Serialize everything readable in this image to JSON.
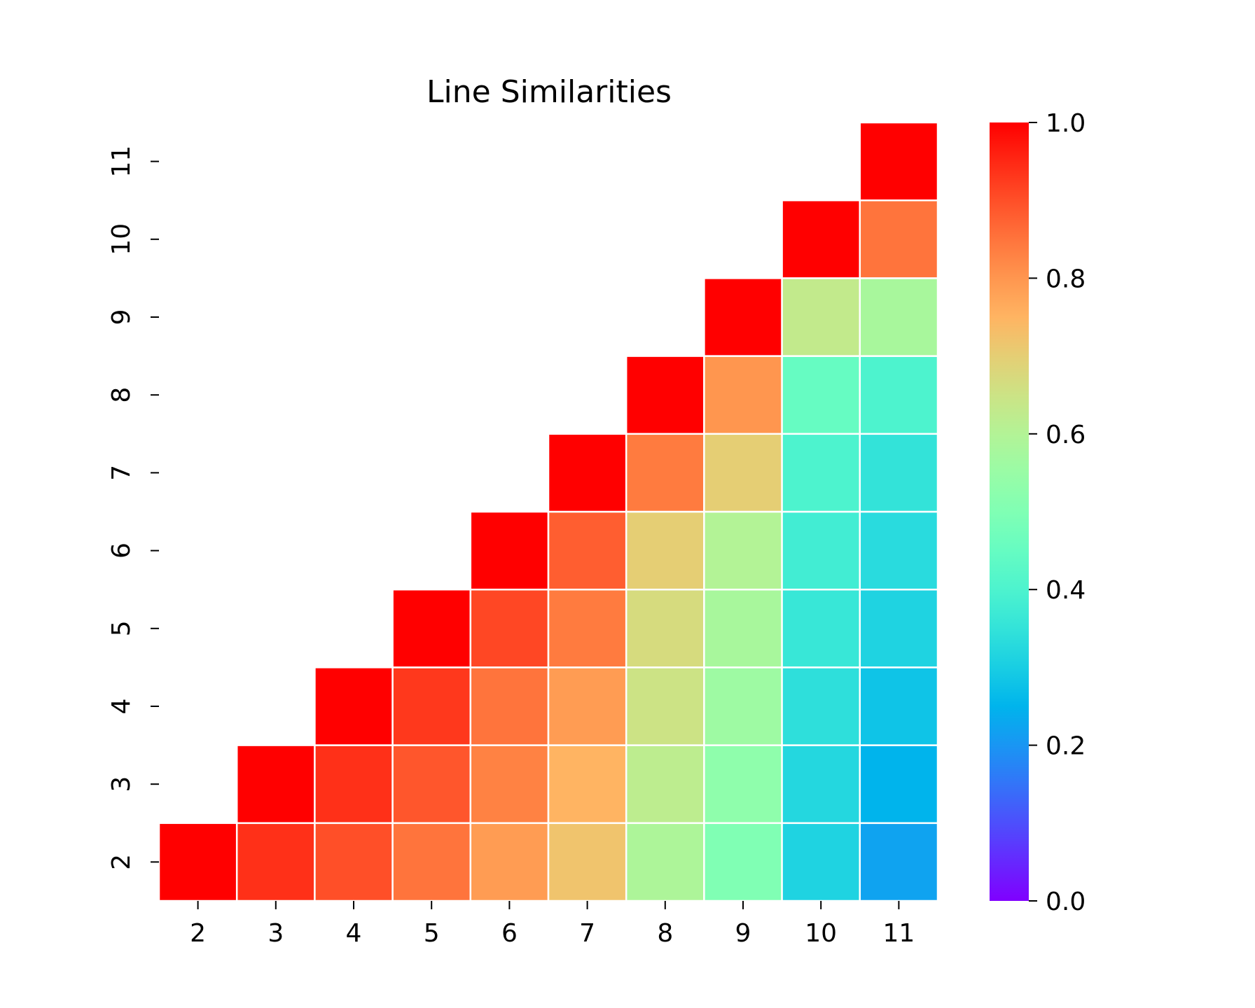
{
  "chart_data": {
    "type": "heatmap",
    "title": "Line Similarities",
    "xlabel": "",
    "ylabel": "",
    "x_categories": [
      "2",
      "3",
      "4",
      "5",
      "6",
      "7",
      "8",
      "9",
      "10",
      "11"
    ],
    "y_categories": [
      "2",
      "3",
      "4",
      "5",
      "6",
      "7",
      "8",
      "9",
      "10",
      "11"
    ],
    "value_range": [
      0.0,
      1.0
    ],
    "colormap": "rainbow",
    "colorbar_ticks": [
      "0.0",
      "0.2",
      "0.4",
      "0.6",
      "0.8",
      "1.0"
    ],
    "mask": "upper-left triangle (shown where column >= row)",
    "rows": [
      {
        "y": "2",
        "values": [
          1.0,
          0.94,
          0.9,
          0.85,
          0.79,
          0.72,
          0.59,
          0.5,
          0.31,
          0.22
        ]
      },
      {
        "y": "3",
        "values": [
          null,
          1.0,
          0.94,
          0.89,
          0.83,
          0.75,
          0.62,
          0.53,
          0.32,
          0.25
        ]
      },
      {
        "y": "4",
        "values": [
          null,
          null,
          1.0,
          0.93,
          0.85,
          0.79,
          0.65,
          0.56,
          0.34,
          0.28
        ]
      },
      {
        "y": "5",
        "values": [
          null,
          null,
          null,
          1.0,
          0.91,
          0.84,
          0.67,
          0.58,
          0.36,
          0.31
        ]
      },
      {
        "y": "6",
        "values": [
          null,
          null,
          null,
          null,
          1.0,
          0.88,
          0.7,
          0.6,
          0.38,
          0.33
        ]
      },
      {
        "y": "7",
        "values": [
          null,
          null,
          null,
          null,
          null,
          1.0,
          0.84,
          0.7,
          0.4,
          0.35
        ]
      },
      {
        "y": "8",
        "values": [
          null,
          null,
          null,
          null,
          null,
          null,
          1.0,
          0.8,
          0.45,
          0.4
        ]
      },
      {
        "y": "9",
        "values": [
          null,
          null,
          null,
          null,
          null,
          null,
          null,
          1.0,
          0.63,
          0.58
        ]
      },
      {
        "y": "10",
        "values": [
          null,
          null,
          null,
          null,
          null,
          null,
          null,
          null,
          1.0,
          0.85
        ]
      },
      {
        "y": "11",
        "values": [
          null,
          null,
          null,
          null,
          null,
          null,
          null,
          null,
          null,
          1.0
        ]
      }
    ]
  }
}
